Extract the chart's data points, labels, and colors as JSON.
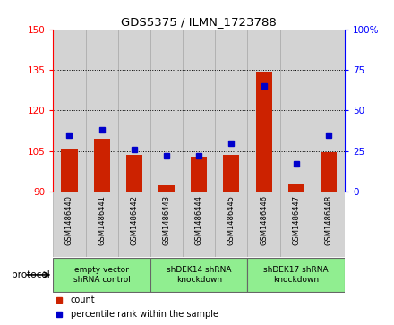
{
  "title": "GDS5375 / ILMN_1723788",
  "samples": [
    "GSM1486440",
    "GSM1486441",
    "GSM1486442",
    "GSM1486443",
    "GSM1486444",
    "GSM1486445",
    "GSM1486446",
    "GSM1486447",
    "GSM1486448"
  ],
  "count_values": [
    106.0,
    109.5,
    103.5,
    92.5,
    103.0,
    103.5,
    134.5,
    93.0,
    104.5
  ],
  "percentile_values": [
    35,
    38,
    26,
    22,
    22,
    30,
    65,
    17,
    35
  ],
  "ylim_left": [
    90,
    150
  ],
  "ylim_right": [
    0,
    100
  ],
  "yticks_left": [
    90,
    105,
    120,
    135,
    150
  ],
  "yticks_right": [
    0,
    25,
    50,
    75,
    100
  ],
  "bar_color": "#cc2200",
  "dot_color": "#0000cc",
  "bar_bg_color": "#d3d3d3",
  "col_edge_color": "#aaaaaa",
  "protocol_groups": [
    {
      "label": "empty vector\nshRNA control",
      "start": 0,
      "end": 3,
      "color": "#90ee90"
    },
    {
      "label": "shDEK14 shRNA\nknockdown",
      "start": 3,
      "end": 6,
      "color": "#90ee90"
    },
    {
      "label": "shDEK17 shRNA\nknockdown",
      "start": 6,
      "end": 9,
      "color": "#90ee90"
    }
  ],
  "legend_count_label": "count",
  "legend_pct_label": "percentile rank within the sample",
  "protocol_label": "protocol"
}
